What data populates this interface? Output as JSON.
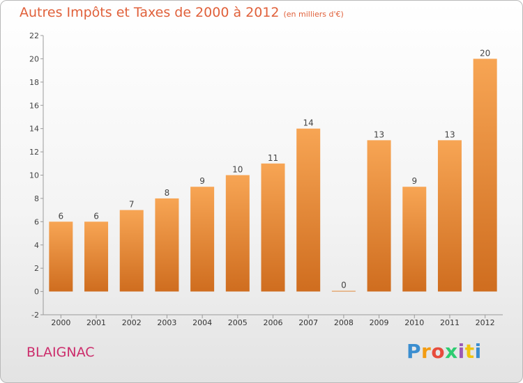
{
  "chart_data": {
    "type": "bar",
    "title": "Autres Impôts et Taxes de 2000 à 2012",
    "subtitle": "(en milliers d'€)",
    "categories": [
      "2000",
      "2001",
      "2002",
      "2003",
      "2004",
      "2005",
      "2006",
      "2007",
      "2008",
      "2009",
      "2010",
      "2011",
      "2012"
    ],
    "values": [
      6,
      6,
      7,
      8,
      9,
      10,
      11,
      14,
      0,
      13,
      9,
      13,
      20
    ],
    "ylim": [
      -2,
      22
    ],
    "yticks": [
      -2,
      0,
      2,
      4,
      6,
      8,
      10,
      12,
      14,
      16,
      18,
      20,
      22
    ],
    "grid": false,
    "bar_color_top": "#f7a554",
    "bar_color_bottom": "#cf6d1f"
  },
  "location": "BLAIGNAC",
  "brand": {
    "letters": [
      "P",
      "r",
      "o",
      "x",
      "i",
      "t",
      "i"
    ],
    "colors": [
      "#3b8ed0",
      "#f39c12",
      "#e74c3c",
      "#2ecc71",
      "#9b59b6",
      "#f1c40f",
      "#3b8ed0"
    ]
  }
}
